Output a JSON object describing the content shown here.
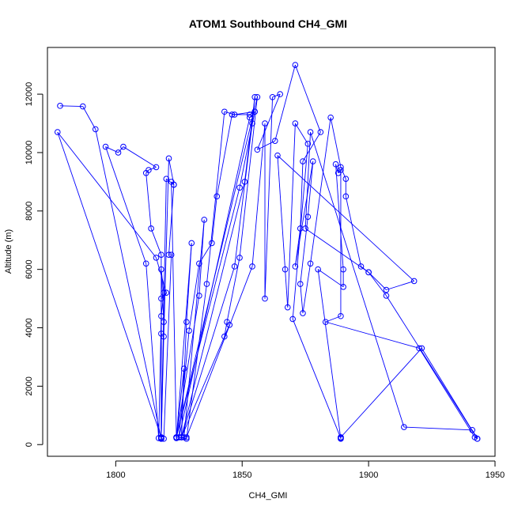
{
  "chart_data": {
    "type": "scatter",
    "title": "ATOM1 Southbound CH4_GMI",
    "xlabel": "CH4_GMI",
    "ylabel": "Altitude (m)",
    "xlim": [
      1773,
      1950
    ],
    "ylim": [
      -400,
      13600
    ],
    "xticks": [
      1800,
      1850,
      1900,
      1950
    ],
    "yticks": [
      0,
      2000,
      4000,
      6000,
      8000,
      10000,
      12000
    ],
    "grid": false,
    "legend": "none",
    "color": "#0000ff",
    "marker": "open-circle",
    "connect_points": true,
    "series": [
      {
        "values": [
          [
            1778,
            11600
          ],
          [
            1787,
            11580
          ],
          [
            1792,
            10800
          ],
          [
            1818,
            200
          ],
          [
            1818,
            220
          ],
          [
            1818,
            250
          ],
          [
            1819,
            4200
          ],
          [
            1818,
            6000
          ],
          [
            1819,
            5200
          ],
          [
            1818,
            4400
          ],
          [
            1817,
            220
          ],
          [
            1812,
            6200
          ],
          [
            1796,
            10200
          ],
          [
            1801,
            10000
          ],
          [
            1803,
            10200
          ],
          [
            1816,
            9500
          ],
          [
            1813,
            9400
          ],
          [
            1812,
            9300
          ],
          [
            1814,
            7400
          ],
          [
            1818,
            6500
          ],
          [
            1818,
            250
          ],
          [
            1777,
            10700
          ],
          [
            1816,
            6400
          ],
          [
            1820,
            5200
          ],
          [
            1818,
            5000
          ],
          [
            1818,
            3800
          ],
          [
            1818,
            200
          ],
          [
            1820,
            9100
          ],
          [
            1823,
            8900
          ],
          [
            1821,
            6500
          ],
          [
            1822,
            6500
          ],
          [
            1819,
            200
          ],
          [
            1818,
            200
          ],
          [
            1819,
            3700
          ],
          [
            1821,
            9800
          ],
          [
            1823,
            8900
          ],
          [
            1822,
            9000
          ],
          [
            1824,
            250
          ],
          [
            1827,
            2600
          ],
          [
            1826,
            250
          ],
          [
            1828,
            4200
          ],
          [
            1830,
            6900
          ],
          [
            1824,
            220
          ],
          [
            1824,
            250
          ],
          [
            1833,
            5100
          ],
          [
            1835,
            7700
          ],
          [
            1827,
            250
          ],
          [
            1825,
            250
          ],
          [
            1829,
            3900
          ],
          [
            1833,
            6200
          ],
          [
            1838,
            6900
          ],
          [
            1840,
            8500
          ],
          [
            1846,
            11300
          ],
          [
            1853,
            11300
          ],
          [
            1855,
            11400
          ],
          [
            1853,
            11200
          ],
          [
            1825,
            250
          ],
          [
            1828,
            200
          ],
          [
            1836,
            5500
          ],
          [
            1843,
            11400
          ],
          [
            1847,
            11300
          ],
          [
            1855,
            11400
          ],
          [
            1849,
            8800
          ],
          [
            1824,
            250
          ],
          [
            1826,
            250
          ],
          [
            1845,
            4100
          ],
          [
            1843,
            3700
          ],
          [
            1844,
            4200
          ],
          [
            1849,
            6400
          ],
          [
            1856,
            11900
          ],
          [
            1824,
            250
          ],
          [
            1826,
            250
          ],
          [
            1847,
            6100
          ],
          [
            1854,
            11000
          ],
          [
            1855,
            11900
          ],
          [
            1851,
            9000
          ],
          [
            1826,
            250
          ],
          [
            1828,
            250
          ],
          [
            1854,
            6100
          ],
          [
            1859,
            11000
          ],
          [
            1859,
            5000
          ],
          [
            1862,
            11900
          ],
          [
            1865,
            12000
          ],
          [
            1856,
            10100
          ],
          [
            1863,
            10400
          ],
          [
            1871,
            13000
          ],
          [
            1881,
            10700
          ],
          [
            1874,
            9700
          ],
          [
            1873,
            7400
          ],
          [
            1871,
            6100
          ],
          [
            1878,
            9700
          ],
          [
            1876,
            7800
          ],
          [
            1873,
            5500
          ],
          [
            1874,
            4500
          ],
          [
            1877,
            6200
          ],
          [
            1885,
            11200
          ],
          [
            1889,
            9500
          ],
          [
            1891,
            9100
          ],
          [
            1891,
            8500
          ],
          [
            1897,
            6100
          ],
          [
            1900,
            5900
          ],
          [
            1907,
            5300
          ],
          [
            1918,
            5600
          ],
          [
            1864,
            9900
          ],
          [
            1867,
            6000
          ],
          [
            1868,
            4700
          ],
          [
            1871,
            11000
          ],
          [
            1876,
            10300
          ],
          [
            1870,
            4300
          ],
          [
            1889,
            220
          ],
          [
            1889,
            250
          ],
          [
            1889,
            200
          ],
          [
            1880,
            6000
          ],
          [
            1890,
            5400
          ],
          [
            1890,
            6000
          ],
          [
            1887,
            9600
          ],
          [
            1888,
            9300
          ],
          [
            1889,
            9400
          ],
          [
            1889,
            4400
          ],
          [
            1883,
            4200
          ],
          [
            1920,
            3300
          ],
          [
            1942,
            250
          ],
          [
            1943,
            200
          ],
          [
            1941,
            500
          ],
          [
            1914,
            600
          ],
          [
            1877,
            10700
          ],
          [
            1875,
            7400
          ],
          [
            1900,
            5900
          ],
          [
            1907,
            5100
          ],
          [
            1943,
            200
          ],
          [
            1921,
            3300
          ],
          [
            1889,
            250
          ]
        ]
      }
    ]
  }
}
